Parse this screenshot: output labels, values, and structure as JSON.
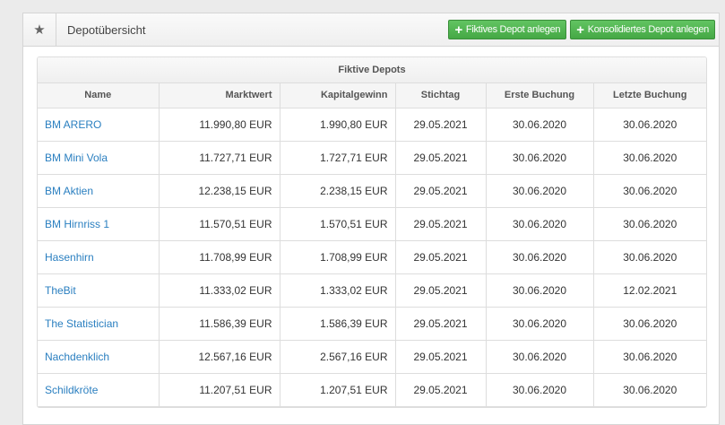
{
  "header": {
    "title": "Depotübersicht",
    "icon": "star-icon",
    "buttons": [
      "Fiktives Depot anlegen",
      "Konsolidiertes Depot anlegen"
    ],
    "button_color": "#4cae4c"
  },
  "table": {
    "caption": "Fiktive Depots",
    "columns": [
      "Name",
      "Marktwert",
      "Kapitalgewinn",
      "Stichtag",
      "Erste Buchung",
      "Letzte Buchung"
    ],
    "rows": [
      [
        "BM ARERO",
        "11.990,80 EUR",
        "1.990,80 EUR",
        "29.05.2021",
        "30.06.2020",
        "30.06.2020"
      ],
      [
        "BM Mini Vola",
        "11.727,71 EUR",
        "1.727,71 EUR",
        "29.05.2021",
        "30.06.2020",
        "30.06.2020"
      ],
      [
        "BM Aktien",
        "12.238,15 EUR",
        "2.238,15 EUR",
        "29.05.2021",
        "30.06.2020",
        "30.06.2020"
      ],
      [
        "BM Hirnriss 1",
        "11.570,51 EUR",
        "1.570,51 EUR",
        "29.05.2021",
        "30.06.2020",
        "30.06.2020"
      ],
      [
        "Hasenhirn",
        "11.708,99 EUR",
        "1.708,99 EUR",
        "29.05.2021",
        "30.06.2020",
        "30.06.2020"
      ],
      [
        "TheBit",
        "11.333,02 EUR",
        "1.333,02 EUR",
        "29.05.2021",
        "30.06.2020",
        "12.02.2021"
      ],
      [
        "The Statistician",
        "11.586,39 EUR",
        "1.586,39 EUR",
        "29.05.2021",
        "30.06.2020",
        "30.06.2020"
      ],
      [
        "Nachdenklich",
        "12.567,16 EUR",
        "2.567,16 EUR",
        "29.05.2021",
        "30.06.2020",
        "30.06.2020"
      ],
      [
        "Schildkröte",
        "11.207,51 EUR",
        "1.207,51 EUR",
        "29.05.2021",
        "30.06.2020",
        "30.06.2020"
      ]
    ]
  }
}
